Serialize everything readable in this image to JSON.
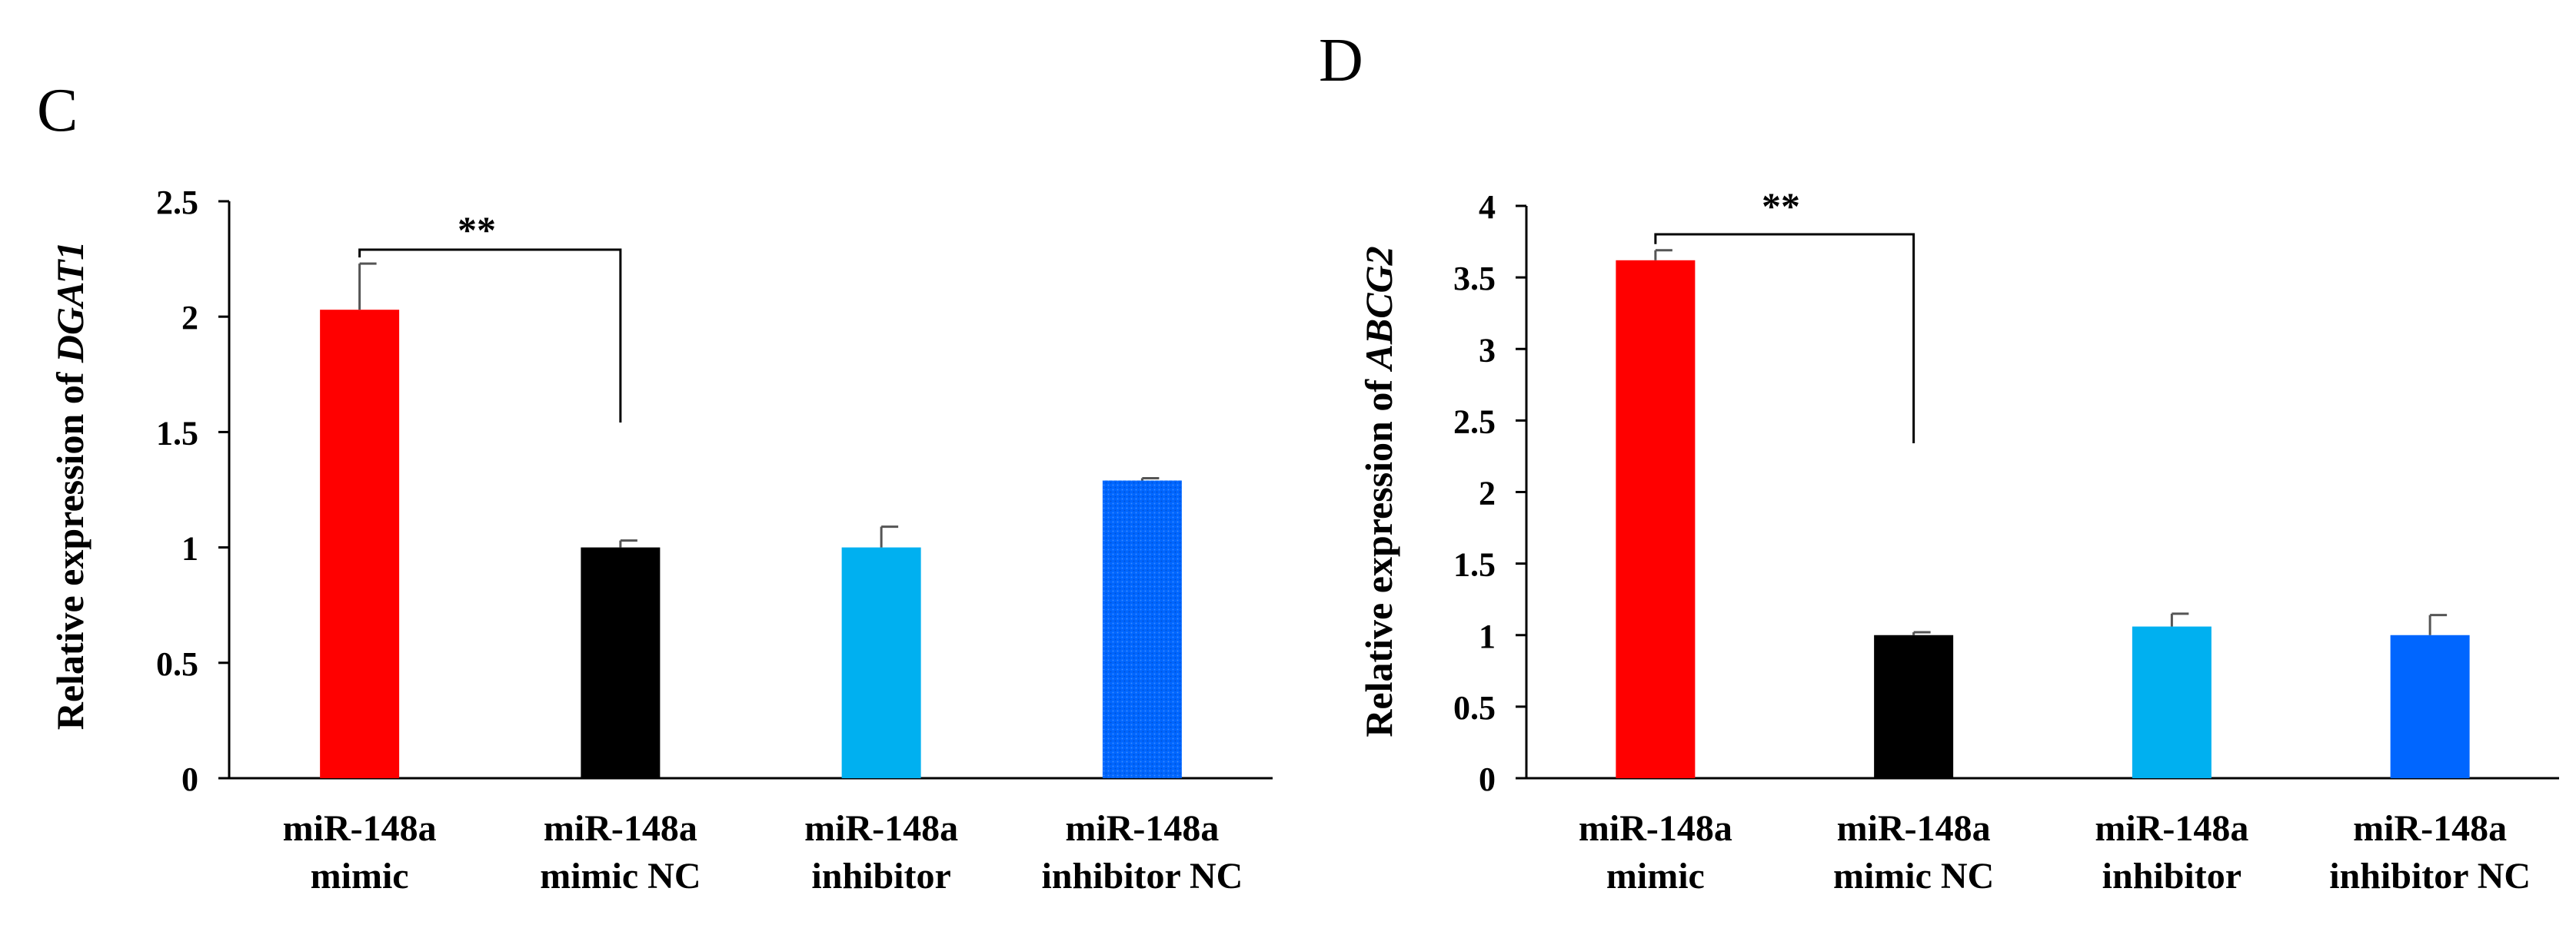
{
  "panels": [
    {
      "letter": "C",
      "ylabel_prefix": "Relative expression of ",
      "ylabel_gene": "DGAT1",
      "significance": "**"
    },
    {
      "letter": "D",
      "ylabel_prefix": "Relative expression of ",
      "ylabel_gene": "ABCG2",
      "significance": "**"
    }
  ],
  "chart_data": [
    {
      "type": "bar",
      "categories": [
        [
          "miR-148a",
          "mimic"
        ],
        [
          "miR-148a",
          "mimic NC"
        ],
        [
          "miR-148a",
          "inhibitor"
        ],
        [
          "miR-148a",
          "inhibitor NC"
        ]
      ],
      "values": [
        2.03,
        1.0,
        1.0,
        1.29
      ],
      "errors": [
        0.2,
        0.03,
        0.09,
        0.01
      ],
      "colors": [
        "#ff0000",
        "#000000",
        "#00b0f0",
        "#0066ff"
      ],
      "ylabel": "Relative expression of DGAT1",
      "ylim": [
        0,
        2.5
      ],
      "yticks": [
        "0",
        "0.5",
        "1",
        "1.5",
        "2",
        "2.5"
      ],
      "ytick_values": [
        0,
        0.5,
        1,
        1.5,
        2,
        2.5
      ],
      "grid": false,
      "annotation": {
        "text": "**",
        "between": [
          0,
          1
        ]
      }
    },
    {
      "type": "bar",
      "categories": [
        [
          "miR-148a",
          "mimic"
        ],
        [
          "miR-148a",
          "mimic NC"
        ],
        [
          "miR-148a",
          "inhibitor"
        ],
        [
          "miR-148a",
          "inhibitor NC"
        ]
      ],
      "values": [
        3.62,
        1.0,
        1.06,
        1.0
      ],
      "errors": [
        0.07,
        0.02,
        0.09,
        0.14
      ],
      "colors": [
        "#ff0000",
        "#000000",
        "#00b0f0",
        "#0066ff"
      ],
      "ylabel": "Relative expression of ABCG2",
      "ylim": [
        0,
        4
      ],
      "yticks": [
        "0",
        "0.5",
        "1",
        "1.5",
        "2",
        "2.5",
        "3",
        "3.5",
        "4"
      ],
      "ytick_values": [
        0,
        0.5,
        1,
        1.5,
        2,
        2.5,
        3,
        3.5,
        4
      ],
      "grid": false,
      "annotation": {
        "text": "**",
        "between": [
          0,
          1
        ]
      }
    }
  ]
}
